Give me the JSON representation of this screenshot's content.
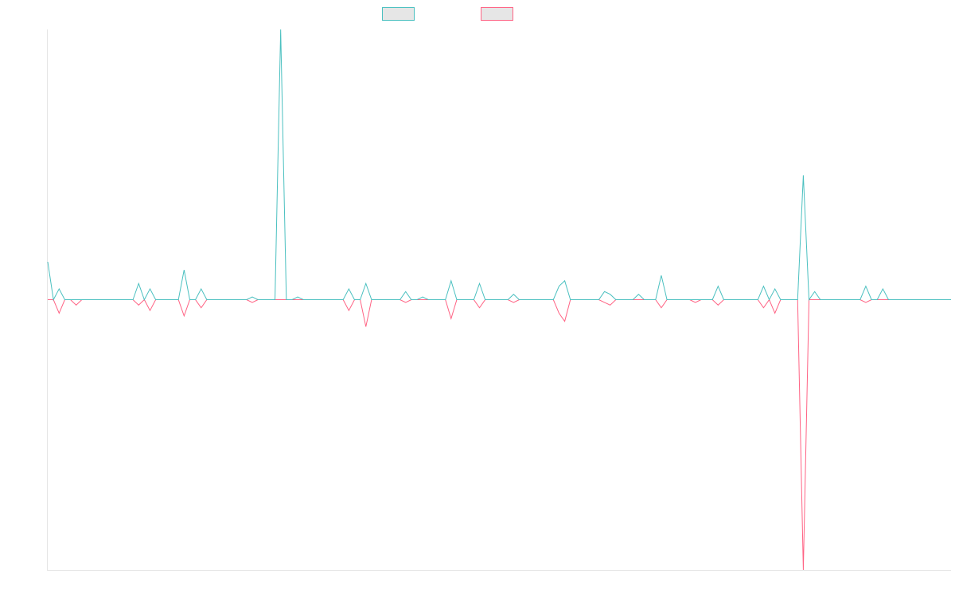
{
  "chart_data": {
    "type": "line",
    "ylim": [
      -100,
      100
    ],
    "series": [
      {
        "color": "#4bc0c0",
        "values": [
          14,
          0,
          4,
          0,
          0,
          0,
          0,
          0,
          0,
          0,
          0,
          0,
          0,
          0,
          0,
          0,
          6,
          0,
          4,
          0,
          0,
          0,
          0,
          0,
          11,
          0,
          0,
          4,
          0,
          0,
          0,
          0,
          0,
          0,
          0,
          0,
          1,
          0,
          0,
          0,
          0,
          100,
          0,
          0,
          1,
          0,
          0,
          0,
          0,
          0,
          0,
          0,
          0,
          4,
          0,
          0,
          6,
          0,
          0,
          0,
          0,
          0,
          0,
          3,
          0,
          0,
          1,
          0,
          0,
          0,
          0,
          7,
          0,
          0,
          0,
          0,
          6,
          0,
          0,
          0,
          0,
          0,
          2,
          0,
          0,
          0,
          0,
          0,
          0,
          0,
          5,
          7,
          0,
          0,
          0,
          0,
          0,
          0,
          3,
          2,
          0,
          0,
          0,
          0,
          2,
          0,
          0,
          0,
          9,
          0,
          0,
          0,
          0,
          0,
          0,
          0,
          0,
          0,
          5,
          0,
          0,
          0,
          0,
          0,
          0,
          0,
          5,
          0,
          4,
          0,
          0,
          0,
          0,
          46,
          0,
          3,
          0,
          0,
          0,
          0,
          0,
          0,
          0,
          0,
          5,
          0,
          0,
          4,
          0,
          0,
          0,
          0,
          0,
          0,
          0,
          0,
          0,
          0,
          0,
          0
        ]
      },
      {
        "color": "#ff6384",
        "values": [
          0,
          0,
          -5,
          0,
          0,
          -2,
          0,
          0,
          0,
          0,
          0,
          0,
          0,
          0,
          0,
          0,
          -2,
          0,
          -4,
          0,
          0,
          0,
          0,
          0,
          -6,
          0,
          0,
          -3,
          0,
          0,
          0,
          0,
          0,
          0,
          0,
          0,
          -1,
          0,
          0,
          0,
          0,
          0,
          0,
          0,
          0,
          0,
          0,
          0,
          0,
          0,
          0,
          0,
          0,
          -4,
          0,
          0,
          -10,
          0,
          0,
          0,
          0,
          0,
          0,
          -1,
          0,
          0,
          0,
          0,
          0,
          0,
          0,
          -7,
          0,
          0,
          0,
          0,
          -3,
          0,
          0,
          0,
          0,
          0,
          -1,
          0,
          0,
          0,
          0,
          0,
          0,
          0,
          -5,
          -8,
          0,
          0,
          0,
          0,
          0,
          0,
          -1,
          -2,
          0,
          0,
          0,
          0,
          0,
          0,
          0,
          0,
          -3,
          0,
          0,
          0,
          0,
          0,
          -1,
          0,
          0,
          0,
          -2,
          0,
          0,
          0,
          0,
          0,
          0,
          0,
          -3,
          0,
          -5,
          0,
          0,
          0,
          0,
          -100,
          0,
          0,
          0,
          0,
          0,
          0,
          0,
          0,
          0,
          0,
          -1,
          0,
          0,
          0,
          0,
          0,
          0,
          0,
          0,
          0,
          0,
          0,
          0,
          0,
          0,
          0
        ]
      }
    ]
  }
}
